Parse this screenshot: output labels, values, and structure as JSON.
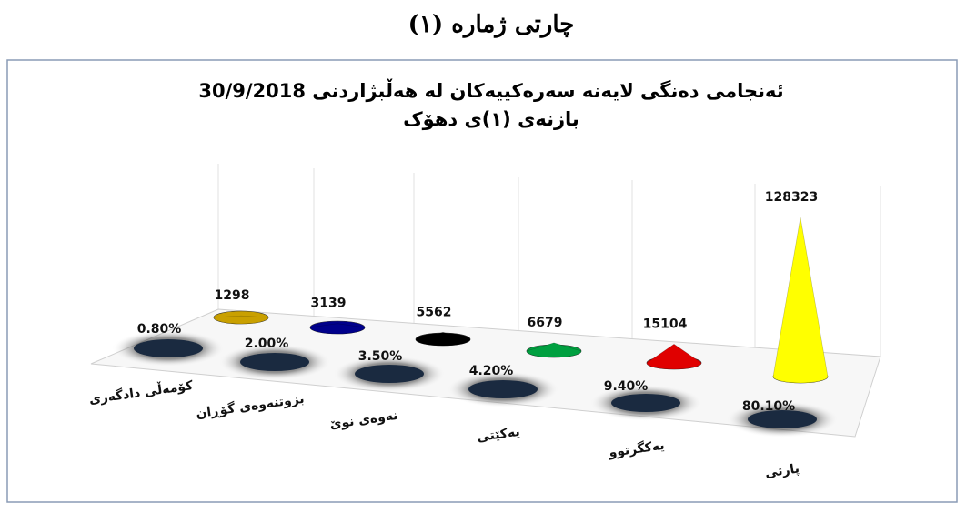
{
  "chart_data": {
    "type": "cone",
    "header": "چارتی ژمارە (١)",
    "title": "ئەنجامی دەنگی لایەنە سەرەکییەکان لە هەڵبژاردنی 30/9/2018",
    "subtitle": "بازنەی (١)ی دهۆک",
    "categories": [
      "کۆمەڵی دادگەری",
      "بزوتنەوەی گۆڕان",
      "نەوەی نوێ",
      "یەکێتی",
      "یەکگرتوو",
      "پارتی"
    ],
    "values": [
      1298,
      3139,
      5562,
      6679,
      15104,
      128323
    ],
    "colors": [
      "#c9a000",
      "#00008b",
      "#000000",
      "#00a040",
      "#e00000",
      "#ffff00"
    ],
    "shares": {
      "values": [
        0.8,
        2.0,
        3.5,
        4.2,
        9.4,
        80.1
      ],
      "value_labels": [
        "0.80%",
        "2.00%",
        "3.50%",
        "4.20%",
        "9.40%",
        "80.10%"
      ]
    }
  }
}
